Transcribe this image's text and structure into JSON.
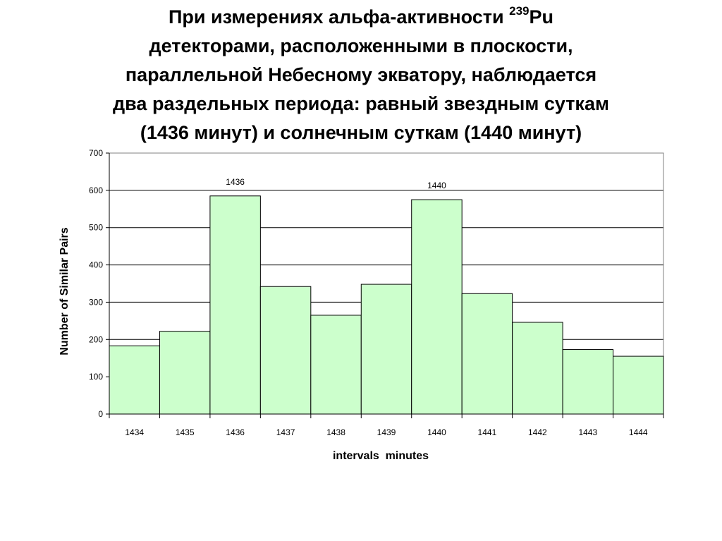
{
  "slide": {
    "title_lines": [
      "При  измерениях альфа-активности ",
      "детекторами, расположенными в плоскости,",
      "параллельной Небесному экватору, наблюдается",
      "два раздельных периода: равный звездным суткам",
      "(1436 минут) и солнечным суткам (1440 минут)"
    ],
    "title_sup": "239",
    "title_element": "Pu"
  },
  "chart_data": {
    "type": "bar",
    "categories": [
      "1434",
      "1435",
      "1436",
      "1437",
      "1438",
      "1439",
      "1440",
      "1441",
      "1442",
      "1443",
      "1444"
    ],
    "values": [
      183,
      222,
      585,
      342,
      265,
      348,
      575,
      323,
      246,
      173,
      155
    ],
    "xlabel": "intervals  minutes",
    "ylabel": "Number of Similar Pairs",
    "ylim": [
      0,
      700
    ],
    "yticks": [
      0,
      100,
      200,
      300,
      400,
      500,
      600,
      700
    ],
    "grid": true,
    "bar_color": "#ccffcc",
    "bar_annotations": [
      {
        "category": "1436",
        "label": "1436"
      },
      {
        "category": "1440",
        "label": "1440"
      }
    ]
  }
}
